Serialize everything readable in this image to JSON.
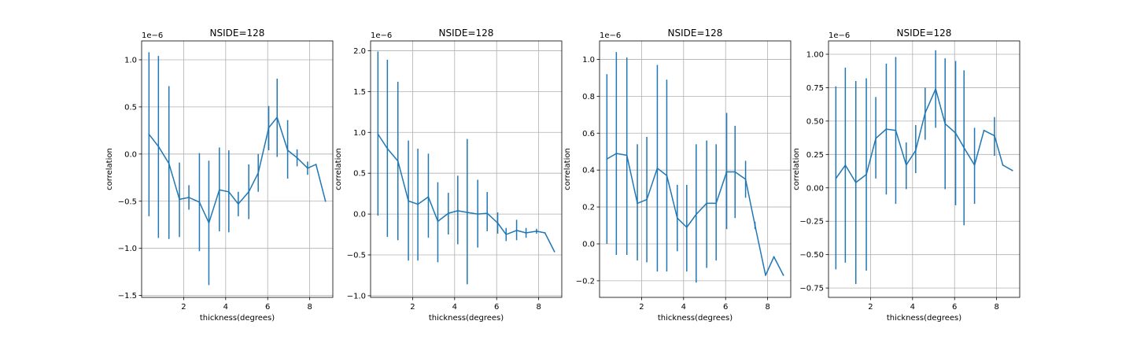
{
  "chart_data": [
    {
      "type": "line",
      "title": "NSIDE=128",
      "xlabel": "thickness(degrees)",
      "ylabel": "correlation",
      "offset_text": "1e−6",
      "xlim": [
        0.0,
        9.1
      ],
      "ylim": [
        -1.52,
        1.2
      ],
      "xticks": [
        2,
        4,
        6,
        8
      ],
      "xtick_labels": [
        "2",
        "4",
        "6",
        "8"
      ],
      "yticks": [
        -1.5,
        -1.0,
        -0.5,
        0.0,
        0.5,
        1.0
      ],
      "ytick_labels": [
        "−1.5",
        "−1.0",
        "−0.5",
        "0.0",
        "0.5",
        "1.0"
      ],
      "grid": true,
      "series": [
        {
          "color": "#1f77b4",
          "x": [
            0.35,
            0.8,
            1.3,
            1.8,
            2.25,
            2.75,
            3.2,
            3.7,
            4.15,
            4.6,
            5.1,
            5.55,
            6.05,
            6.45,
            6.95,
            7.4,
            7.9,
            8.3,
            8.75
          ],
          "y": [
            0.21,
            0.08,
            -0.1,
            -0.48,
            -0.46,
            -0.51,
            -0.73,
            -0.38,
            -0.4,
            -0.53,
            -0.4,
            -0.2,
            0.28,
            0.39,
            0.04,
            -0.04,
            -0.15,
            -0.11,
            -0.5
          ],
          "err_low": [
            -0.66,
            -0.89,
            -0.9,
            -0.88,
            -0.59,
            -1.03,
            -1.39,
            -0.82,
            -0.83,
            -0.66,
            -0.69,
            -0.4,
            0.04,
            -0.03,
            -0.26,
            -0.13,
            -0.22,
            null,
            null
          ],
          "err_high": [
            1.08,
            1.04,
            0.72,
            -0.09,
            -0.33,
            0.01,
            -0.07,
            0.07,
            0.04,
            -0.4,
            -0.11,
            0.0,
            0.51,
            0.8,
            0.36,
            0.05,
            -0.08,
            null,
            null
          ]
        }
      ]
    },
    {
      "type": "line",
      "title": "NSIDE=128",
      "xlabel": "thickness(degrees)",
      "ylabel": "correlation",
      "offset_text": "1e−6",
      "xlim": [
        0.0,
        9.1
      ],
      "ylim": [
        -1.02,
        2.12
      ],
      "xticks": [
        2,
        4,
        6,
        8
      ],
      "xtick_labels": [
        "2",
        "4",
        "6",
        "8"
      ],
      "yticks": [
        -1.0,
        -0.5,
        0.0,
        0.5,
        1.0,
        1.5,
        2.0
      ],
      "ytick_labels": [
        "−1.0",
        "−0.5",
        "0.0",
        "0.5",
        "1.0",
        "1.5",
        "2.0"
      ],
      "grid": true,
      "series": [
        {
          "color": "#1f77b4",
          "x": [
            0.35,
            0.8,
            1.3,
            1.8,
            2.25,
            2.75,
            3.2,
            3.7,
            4.15,
            4.6,
            5.1,
            5.55,
            6.05,
            6.45,
            6.95,
            7.4,
            7.9,
            8.3,
            8.75
          ],
          "y": [
            0.98,
            0.8,
            0.65,
            0.16,
            0.12,
            0.21,
            -0.09,
            0.01,
            0.04,
            0.02,
            0.0,
            0.01,
            -0.11,
            -0.25,
            -0.2,
            -0.23,
            -0.21,
            -0.23,
            -0.46
          ],
          "err_low": [
            -0.02,
            -0.28,
            -0.32,
            -0.57,
            -0.57,
            -0.29,
            -0.59,
            -0.25,
            -0.37,
            -0.86,
            -0.41,
            -0.21,
            -0.24,
            -0.33,
            -0.32,
            -0.29,
            -0.24,
            null,
            null
          ],
          "err_high": [
            1.99,
            1.89,
            1.62,
            0.9,
            0.8,
            0.74,
            0.39,
            0.26,
            0.47,
            0.92,
            0.42,
            0.27,
            0.02,
            -0.17,
            -0.07,
            -0.17,
            -0.18,
            null,
            null
          ]
        }
      ]
    },
    {
      "type": "line",
      "title": "NSIDE=128",
      "xlabel": "thickness(degrees)",
      "ylabel": "correlation",
      "offset_text": "1e−6",
      "xlim": [
        0.0,
        9.1
      ],
      "ylim": [
        -0.29,
        1.1
      ],
      "xticks": [
        2,
        4,
        6,
        8
      ],
      "xtick_labels": [
        "2",
        "4",
        "6",
        "8"
      ],
      "yticks": [
        -0.2,
        0.0,
        0.2,
        0.4,
        0.6,
        0.8,
        1.0
      ],
      "ytick_labels": [
        "−0.2",
        "0.0",
        "0.2",
        "0.4",
        "0.6",
        "0.8",
        "1.0"
      ],
      "grid": true,
      "series": [
        {
          "color": "#1f77b4",
          "x": [
            0.35,
            0.8,
            1.3,
            1.8,
            2.25,
            2.75,
            3.2,
            3.7,
            4.15,
            4.6,
            5.1,
            5.55,
            6.05,
            6.45,
            6.95,
            7.4,
            7.9,
            8.3,
            8.75
          ],
          "y": [
            0.46,
            0.49,
            0.48,
            0.22,
            0.24,
            0.41,
            0.37,
            0.14,
            0.09,
            0.16,
            0.22,
            0.22,
            0.39,
            0.39,
            0.35,
            0.1,
            -0.17,
            -0.07,
            -0.17
          ],
          "err_low": [
            0.0,
            -0.06,
            -0.06,
            -0.09,
            -0.1,
            -0.15,
            -0.15,
            -0.04,
            -0.15,
            -0.21,
            -0.13,
            -0.09,
            0.08,
            0.14,
            0.25,
            0.08,
            null,
            null,
            null
          ],
          "err_high": [
            0.92,
            1.04,
            1.01,
            0.54,
            0.58,
            0.97,
            0.89,
            0.32,
            0.32,
            0.54,
            0.56,
            0.54,
            0.71,
            0.64,
            0.45,
            0.12,
            null,
            null,
            null
          ]
        }
      ]
    },
    {
      "type": "line",
      "title": "NSIDE=128",
      "xlabel": "thickness(degrees)",
      "ylabel": "correlation",
      "offset_text": "1e−6",
      "xlim": [
        0.0,
        9.1
      ],
      "ylim": [
        -0.82,
        1.1
      ],
      "xticks": [
        2,
        4,
        6,
        8
      ],
      "xtick_labels": [
        "2",
        "4",
        "6",
        "8"
      ],
      "yticks": [
        -0.75,
        -0.5,
        -0.25,
        0.0,
        0.25,
        0.5,
        0.75,
        1.0
      ],
      "ytick_labels": [
        "−0.75",
        "−0.50",
        "−0.25",
        "0.00",
        "0.25",
        "0.50",
        "0.75",
        "1.00"
      ],
      "grid": true,
      "series": [
        {
          "color": "#1f77b4",
          "x": [
            0.35,
            0.8,
            1.3,
            1.8,
            2.25,
            2.75,
            3.2,
            3.7,
            4.15,
            4.6,
            5.1,
            5.55,
            6.05,
            6.45,
            6.95,
            7.4,
            7.9,
            8.3,
            8.75
          ],
          "y": [
            0.07,
            0.17,
            0.04,
            0.1,
            0.37,
            0.44,
            0.43,
            0.17,
            0.28,
            0.56,
            0.74,
            0.48,
            0.41,
            0.3,
            0.17,
            0.43,
            0.39,
            0.17,
            0.13
          ],
          "err_low": [
            -0.61,
            -0.56,
            -0.72,
            -0.62,
            0.07,
            -0.05,
            -0.12,
            -0.01,
            0.11,
            0.36,
            0.45,
            -0.01,
            -0.13,
            -0.28,
            -0.12,
            null,
            0.24,
            null,
            null
          ],
          "err_high": [
            0.76,
            0.9,
            0.8,
            0.82,
            0.68,
            0.93,
            0.98,
            0.34,
            0.47,
            0.75,
            1.03,
            0.97,
            0.95,
            0.88,
            0.45,
            null,
            0.53,
            null,
            null
          ]
        }
      ]
    }
  ]
}
